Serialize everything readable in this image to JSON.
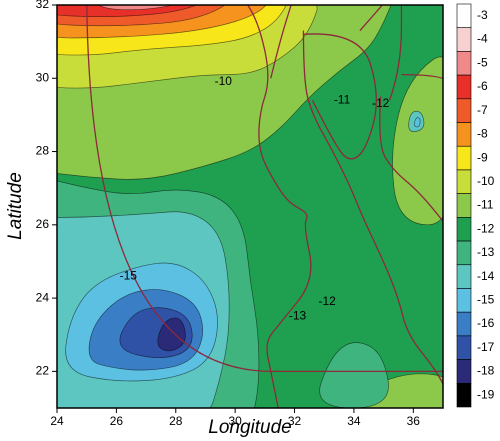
{
  "chart_data": {
    "type": "contour",
    "xlabel": "Longitude",
    "ylabel": "Latitude",
    "xlim": [
      24,
      37
    ],
    "ylim": [
      21,
      32
    ],
    "xticks": [
      24,
      26,
      28,
      30,
      32,
      34,
      36
    ],
    "yticks": [
      22,
      24,
      26,
      28,
      30,
      32
    ],
    "colorbar": {
      "levels": [
        -3,
        -4,
        -5,
        -6,
        -7,
        -8,
        -9,
        -10,
        -11,
        -12,
        -13,
        -14,
        -15,
        -16,
        -17,
        -18,
        -19
      ],
      "colors": [
        "#ffffff",
        "#f7d0d0",
        "#f08a8a",
        "#e8302a",
        "#ef5a2a",
        "#f6921e",
        "#f6e61a",
        "#c9dd3a",
        "#8cc84a",
        "#1fa050",
        "#40b47e",
        "#5ec6c0",
        "#5cc0e2",
        "#3a7ec6",
        "#2f52a6",
        "#2a2a78",
        "#000000"
      ]
    },
    "contour_labels": [
      {
        "value": -10,
        "lon": 29.6,
        "lat": 29.9
      },
      {
        "value": -11,
        "lon": 33.6,
        "lat": 29.4
      },
      {
        "value": -12,
        "lon": 34.9,
        "lat": 29.3
      },
      {
        "value": -15,
        "lon": 26.4,
        "lat": 24.6
      },
      {
        "value": -13,
        "lon": 32.1,
        "lat": 23.5
      },
      {
        "value": -12,
        "lon": 33.1,
        "lat": 23.9
      }
    ]
  }
}
